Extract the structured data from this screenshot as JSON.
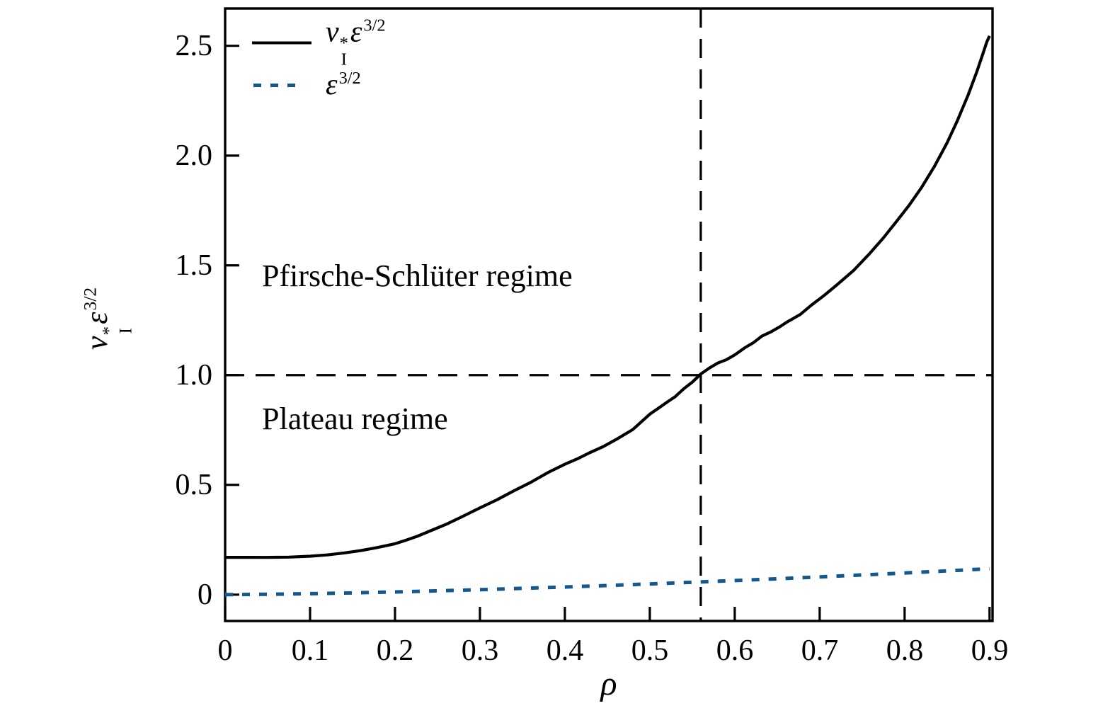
{
  "figure": {
    "background": "#ffffff",
    "ink_color": "#000000",
    "accent_blue": "#14588c"
  },
  "math": {
    "nu": "ν",
    "star": "*",
    "sub_i": "I",
    "eps": "ε",
    "exp": "3/2",
    "rho": "ρ"
  },
  "chart_data": {
    "type": "line",
    "title": "",
    "xlabel": "ρ",
    "ylabel": "ν_I^* ε^(3/2)",
    "grid": false,
    "legend_position": "upper-left",
    "xlim": [
      0,
      0.9035
    ],
    "ylim": [
      -0.12,
      2.67
    ],
    "x_ticks": [
      0,
      0.1,
      0.2,
      0.3,
      0.4,
      0.5,
      0.6,
      0.7,
      0.8,
      0.9
    ],
    "x_tick_labels": [
      "0",
      "0.1",
      "0.2",
      "0.3",
      "0.4",
      "0.5",
      "0.6",
      "0.7",
      "0.8",
      "0.9"
    ],
    "y_ticks": [
      0,
      0.5,
      1.0,
      1.5,
      2.0,
      2.5
    ],
    "y_tick_labels": [
      "0",
      "0.5",
      "1.0",
      "1.5",
      "2.0",
      "2.5"
    ],
    "reference_lines": [
      {
        "orientation": "horizontal",
        "value": 1.0,
        "style": "dashed",
        "color": "#000000"
      },
      {
        "orientation": "vertical",
        "value": 0.56,
        "style": "dashed",
        "color": "#000000"
      }
    ],
    "annotations": [
      {
        "text": "Pfirsche-Schlüter regime",
        "x": 0.043,
        "y": 1.45,
        "anchor": "left"
      },
      {
        "text": "Plateau regime",
        "x": 0.043,
        "y": 0.8,
        "anchor": "left"
      }
    ],
    "series": [
      {
        "name": "nu-star-eps32",
        "label": "ν_I^* ε^(3/2)",
        "color": "#000000",
        "line_style": "solid",
        "points": [
          [
            0.0,
            0.17
          ],
          [
            0.025,
            0.17
          ],
          [
            0.05,
            0.1695
          ],
          [
            0.075,
            0.171
          ],
          [
            0.1,
            0.175
          ],
          [
            0.12,
            0.181
          ],
          [
            0.14,
            0.19
          ],
          [
            0.16,
            0.201
          ],
          [
            0.18,
            0.215
          ],
          [
            0.2,
            0.232
          ],
          [
            0.212,
            0.247
          ],
          [
            0.225,
            0.264
          ],
          [
            0.24,
            0.288
          ],
          [
            0.26,
            0.32
          ],
          [
            0.28,
            0.357
          ],
          [
            0.3,
            0.395
          ],
          [
            0.32,
            0.432
          ],
          [
            0.34,
            0.473
          ],
          [
            0.36,
            0.512
          ],
          [
            0.38,
            0.556
          ],
          [
            0.4,
            0.594
          ],
          [
            0.416,
            0.621
          ],
          [
            0.43,
            0.648
          ],
          [
            0.445,
            0.674
          ],
          [
            0.46,
            0.706
          ],
          [
            0.48,
            0.752
          ],
          [
            0.5,
            0.822
          ],
          [
            0.51,
            0.849
          ],
          [
            0.52,
            0.876
          ],
          [
            0.53,
            0.902
          ],
          [
            0.54,
            0.938
          ],
          [
            0.55,
            0.968
          ],
          [
            0.56,
            1.005
          ],
          [
            0.57,
            1.032
          ],
          [
            0.58,
            1.055
          ],
          [
            0.59,
            1.07
          ],
          [
            0.6,
            1.092
          ],
          [
            0.612,
            1.125
          ],
          [
            0.622,
            1.148
          ],
          [
            0.632,
            1.178
          ],
          [
            0.642,
            1.196
          ],
          [
            0.652,
            1.218
          ],
          [
            0.662,
            1.243
          ],
          [
            0.677,
            1.276
          ],
          [
            0.69,
            1.318
          ],
          [
            0.705,
            1.362
          ],
          [
            0.72,
            1.41
          ],
          [
            0.74,
            1.477
          ],
          [
            0.758,
            1.55
          ],
          [
            0.775,
            1.625
          ],
          [
            0.79,
            1.698
          ],
          [
            0.805,
            1.772
          ],
          [
            0.82,
            1.855
          ],
          [
            0.835,
            1.95
          ],
          [
            0.85,
            2.058
          ],
          [
            0.862,
            2.158
          ],
          [
            0.875,
            2.278
          ],
          [
            0.885,
            2.382
          ],
          [
            0.892,
            2.462
          ],
          [
            0.897,
            2.52
          ],
          [
            0.9,
            2.545
          ]
        ]
      },
      {
        "name": "eps32",
        "label": "ε^(3/2)",
        "color": "#14588c",
        "line_style": "dotted",
        "points": [
          [
            0.0,
            0.0
          ],
          [
            0.05,
            0.0015
          ],
          [
            0.1,
            0.0044
          ],
          [
            0.15,
            0.008
          ],
          [
            0.2,
            0.0123
          ],
          [
            0.25,
            0.0173
          ],
          [
            0.3,
            0.0227
          ],
          [
            0.35,
            0.0286
          ],
          [
            0.4,
            0.0349
          ],
          [
            0.45,
            0.0417
          ],
          [
            0.5,
            0.0488
          ],
          [
            0.55,
            0.0563
          ],
          [
            0.6,
            0.0641
          ],
          [
            0.65,
            0.0723
          ],
          [
            0.7,
            0.0808
          ],
          [
            0.75,
            0.0897
          ],
          [
            0.8,
            0.0988
          ],
          [
            0.85,
            0.1083
          ],
          [
            0.9,
            0.118
          ]
        ]
      }
    ]
  },
  "legend": {
    "items": [
      {
        "label_plain": "ν_I^* ε^(3/2)"
      },
      {
        "label_plain": "ε^(3/2)"
      }
    ]
  }
}
